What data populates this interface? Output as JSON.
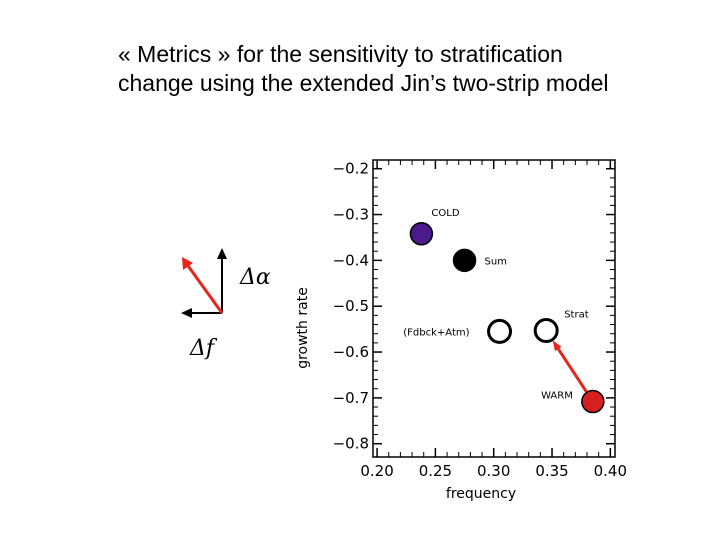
{
  "slide": {
    "title": "« Metrics » for the sensitivity to stratification change using the extended Jin’s two-strip model"
  },
  "diagram": {
    "alpha_label": "Δα",
    "f_label": "Δf",
    "arrow_color": "#e8231c",
    "axis_color": "#000000"
  },
  "chart_data": {
    "type": "scatter",
    "xlabel": "frequency",
    "ylabel": "growth rate",
    "xlim": [
      0.2,
      0.4
    ],
    "ylim": [
      -0.8,
      -0.2
    ],
    "xticks": [
      0.2,
      0.25,
      0.3,
      0.35,
      0.4
    ],
    "xtick_labels": [
      "0.20",
      "0.25",
      "0.30",
      "0.35",
      "0.40"
    ],
    "yticks": [
      -0.2,
      -0.3,
      -0.4,
      -0.5,
      -0.6,
      -0.7,
      -0.8
    ],
    "ytick_labels": [
      "−0.2",
      "−0.3",
      "−0.4",
      "−0.5",
      "−0.6",
      "−0.7",
      "−0.8"
    ],
    "grid": false,
    "points": [
      {
        "label": "COLD",
        "x": 0.238,
        "y": -0.342,
        "fill": "#4b1a8c",
        "hollow": false
      },
      {
        "label": "Sum",
        "x": 0.275,
        "y": -0.4,
        "fill": "#000000",
        "hollow": false
      },
      {
        "label": "(Fdbck+Atm)",
        "x": 0.305,
        "y": -0.555,
        "fill": "#ffffff",
        "hollow": true
      },
      {
        "label": "Strat",
        "x": 0.345,
        "y": -0.553,
        "fill": "#ffffff",
        "hollow": true
      },
      {
        "label": "WARM",
        "x": 0.385,
        "y": -0.708,
        "fill": "#d81f1f",
        "hollow": false
      }
    ],
    "arrow": {
      "from_label": "WARM",
      "to_label": "Strat",
      "color": "#e8231c"
    }
  }
}
